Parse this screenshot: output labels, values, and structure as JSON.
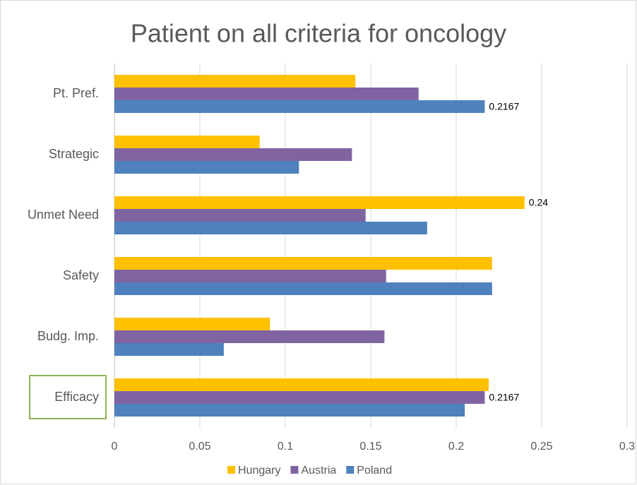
{
  "chart_data": {
    "type": "hbar",
    "title": "Patient on all criteria for oncology",
    "categories": [
      "Pt. Pref.",
      "Strategic",
      "Unmet Need",
      "Safety",
      "Budg. Imp.",
      "Efficacy"
    ],
    "series": [
      {
        "name": "Hungary",
        "color": "#FFC000",
        "values": [
          0.141,
          0.085,
          0.24,
          0.221,
          0.091,
          0.219
        ],
        "value_labels": [
          null,
          null,
          "0.24",
          null,
          null,
          null
        ]
      },
      {
        "name": "Austria",
        "color": "#8064A2",
        "values": [
          0.178,
          0.139,
          0.147,
          0.159,
          0.158,
          0.2167
        ],
        "value_labels": [
          null,
          null,
          null,
          null,
          null,
          "0.2167"
        ]
      },
      {
        "name": "Poland",
        "color": "#4F81BD",
        "values": [
          0.2167,
          0.108,
          0.183,
          0.221,
          0.064,
          0.205
        ],
        "value_labels": [
          "0.2167",
          null,
          null,
          null,
          null,
          null
        ]
      }
    ],
    "xlim": [
      0,
      0.3
    ],
    "xticks": [
      0,
      0.05,
      0.1,
      0.15,
      0.2,
      0.25,
      0.3
    ],
    "grid": true,
    "legend": "bottom"
  }
}
